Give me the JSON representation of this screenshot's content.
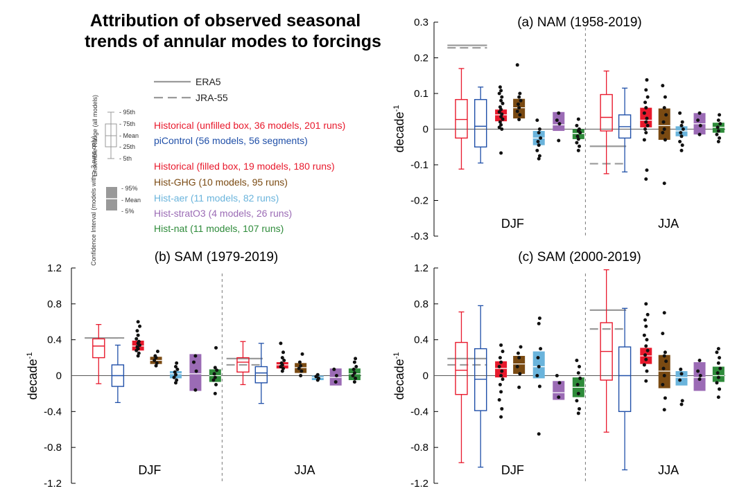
{
  "figure": {
    "title_line1": "Attribution of observed seasonal",
    "title_line2": "trends of annular modes to forcings"
  },
  "legend": {
    "obs": [
      {
        "name": "ERA5",
        "dash": false
      },
      {
        "name": "JRA-55",
        "dash": true
      }
    ],
    "ensemble_box_title": "Ensemble Range (all models)",
    "ensemble_box_labels": [
      "95th",
      "75th",
      "Mean",
      "25th",
      "5th"
    ],
    "ci_box_title": "Confidence Interval (models with ≥ 3 runs only)",
    "ci_box_labels": [
      "95%",
      "Mean",
      "5%"
    ],
    "entries": [
      {
        "text": "Historical (unfilled box, 36 models, 201 runs)",
        "color": "#e8192c"
      },
      {
        "text": "piControl (56 models, 56 segments)",
        "color": "#1f4fa8"
      },
      {
        "text": "Historical (filled box, 19 models, 180 runs)",
        "color": "#e8192c"
      },
      {
        "text": "Hist-GHG (10 models, 95 runs)",
        "color": "#7a4a12"
      },
      {
        "text": "Hist-aer (11 models, 82 runs)",
        "color": "#6ab4dc"
      },
      {
        "text": "Hist-stratO3 (4 models, 26 runs)",
        "color": "#9b6bb5"
      },
      {
        "text": "Hist-nat (11 models, 107 runs)",
        "color": "#2e8b3a"
      }
    ]
  },
  "chart_data": [
    {
      "id": "a",
      "type": "box",
      "title": "(a) NAM (1958-2019)",
      "ylabel": "decade-1",
      "ylim": [
        -0.3,
        0.3
      ],
      "yticks": [
        "0.3",
        "0.2",
        "0.1",
        "0",
        "-0.1",
        "-0.2",
        "-0.3"
      ],
      "ytick_values": [
        0.3,
        0.2,
        0.1,
        0,
        -0.1,
        -0.2,
        -0.3
      ],
      "seasons": [
        "DJF",
        "JJA"
      ],
      "obs": {
        "DJF": {
          "ERA5": 0.235,
          "JRA-55": 0.228
        },
        "JJA": {
          "ERA5": -0.048,
          "JRA-55": -0.097
        }
      },
      "groups": {
        "DJF": [
          {
            "exp": "Historical",
            "kind": "range",
            "p5": -0.112,
            "p25": -0.025,
            "mean": 0.027,
            "p75": 0.083,
            "p95": 0.17
          },
          {
            "exp": "piControl",
            "kind": "range",
            "p5": -0.095,
            "p25": -0.05,
            "mean": 0.008,
            "p75": 0.083,
            "p95": 0.118
          },
          {
            "exp": "Historical",
            "kind": "ci",
            "lo": 0.022,
            "mean": 0.04,
            "hi": 0.055,
            "dots": [
              -0.067,
              0.0,
              0.005,
              0.012,
              0.02,
              0.028,
              0.035,
              0.042,
              0.048,
              0.055,
              0.062,
              0.072,
              0.08,
              0.09,
              0.1,
              0.108,
              0.118
            ]
          },
          {
            "exp": "Hist-GHG",
            "kind": "ci",
            "lo": 0.03,
            "mean": 0.06,
            "hi": 0.085,
            "dots": [
              0.027,
              0.04,
              0.05,
              0.06,
              0.07,
              0.08,
              0.09,
              0.1,
              0.18
            ]
          },
          {
            "exp": "Hist-aer",
            "kind": "ci",
            "lo": -0.045,
            "mean": -0.025,
            "hi": -0.005,
            "dots": [
              -0.083,
              -0.075,
              -0.06,
              -0.045,
              -0.035,
              -0.025,
              -0.01,
              0.0,
              0.025
            ]
          },
          {
            "exp": "Hist-stratO3",
            "kind": "ci",
            "lo": -0.005,
            "mean": 0.012,
            "hi": 0.048,
            "dots": [
              -0.032,
              0.015,
              0.025,
              0.045
            ]
          },
          {
            "exp": "Hist-nat",
            "kind": "ci",
            "lo": -0.028,
            "mean": -0.012,
            "hi": 0.0,
            "dots": [
              -0.06,
              -0.048,
              -0.038,
              -0.028,
              -0.02,
              -0.01,
              -0.005,
              0.0,
              0.01,
              0.028
            ]
          }
        ],
        "JJA": [
          {
            "exp": "Historical",
            "kind": "range",
            "p5": -0.125,
            "p25": -0.005,
            "mean": 0.033,
            "p75": 0.097,
            "p95": 0.163
          },
          {
            "exp": "piControl",
            "kind": "range",
            "p5": -0.12,
            "p25": -0.025,
            "mean": 0.007,
            "p75": 0.04,
            "p95": 0.115
          },
          {
            "exp": "Historical",
            "kind": "ci",
            "lo": 0.005,
            "mean": 0.025,
            "hi": 0.06,
            "dots": [
              -0.14,
              -0.115,
              -0.03,
              -0.01,
              0.0,
              0.01,
              0.02,
              0.03,
              0.045,
              0.06,
              0.075,
              0.09,
              0.11,
              0.138
            ]
          },
          {
            "exp": "Hist-GHG",
            "kind": "ci",
            "lo": -0.03,
            "mean": 0.01,
            "hi": 0.058,
            "dots": [
              -0.152,
              -0.03,
              -0.01,
              0.0,
              0.02,
              0.04,
              0.06,
              0.09,
              0.122
            ]
          },
          {
            "exp": "Hist-aer",
            "kind": "ci",
            "lo": -0.02,
            "mean": -0.005,
            "hi": 0.008,
            "dots": [
              -0.06,
              -0.045,
              -0.035,
              -0.02,
              -0.01,
              0.0,
              0.01,
              0.02,
              0.045
            ]
          },
          {
            "exp": "Hist-stratO3",
            "kind": "ci",
            "lo": -0.015,
            "mean": 0.015,
            "hi": 0.045,
            "dots": [
              -0.015,
              0.01,
              0.025,
              0.045
            ]
          },
          {
            "exp": "Hist-nat",
            "kind": "ci",
            "lo": -0.01,
            "mean": 0.005,
            "hi": 0.018,
            "dots": [
              -0.035,
              -0.025,
              -0.015,
              -0.005,
              0.005,
              0.015,
              0.025,
              0.04
            ]
          }
        ]
      }
    },
    {
      "id": "b",
      "type": "box",
      "title": "(b) SAM (1979-2019)",
      "ylabel": "decade-1",
      "ylim": [
        -1.2,
        1.2
      ],
      "yticks": [
        "1.2",
        "0.8",
        "0.4",
        "0",
        "-0.4",
        "-0.8",
        "-1.2"
      ],
      "ytick_values": [
        1.2,
        0.8,
        0.4,
        0,
        -0.4,
        -0.8,
        -1.2
      ],
      "seasons": [
        "DJF",
        "JJA"
      ],
      "obs": {
        "DJF": {
          "ERA5": 0.42,
          "JRA-55": 0.42
        },
        "JJA": {
          "ERA5": 0.19,
          "JRA-55": 0.12
        }
      },
      "groups": {
        "DJF": [
          {
            "exp": "Historical",
            "kind": "range",
            "p5": -0.09,
            "p25": 0.2,
            "mean": 0.33,
            "p75": 0.41,
            "p95": 0.57
          },
          {
            "exp": "piControl",
            "kind": "range",
            "p5": -0.3,
            "p25": -0.12,
            "mean": 0.0,
            "p75": 0.12,
            "p95": 0.34
          },
          {
            "exp": "Historical",
            "kind": "ci",
            "lo": 0.28,
            "mean": 0.33,
            "hi": 0.39,
            "dots": [
              0.22,
              0.25,
              0.28,
              0.3,
              0.32,
              0.34,
              0.36,
              0.38,
              0.41,
              0.45,
              0.5,
              0.55,
              0.6
            ]
          },
          {
            "exp": "Hist-GHG",
            "kind": "ci",
            "lo": 0.13,
            "mean": 0.17,
            "hi": 0.21,
            "dots": [
              0.11,
              0.14,
              0.17,
              0.2,
              0.22,
              0.27
            ]
          },
          {
            "exp": "Hist-aer",
            "kind": "ci",
            "lo": -0.03,
            "mean": 0.02,
            "hi": 0.05,
            "dots": [
              -0.08,
              -0.05,
              -0.02,
              0.01,
              0.04,
              0.07,
              0.1,
              0.14
            ]
          },
          {
            "exp": "Hist-stratO3",
            "kind": "ci",
            "lo": -0.17,
            "mean": 0.02,
            "hi": 0.24,
            "dots": [
              -0.16,
              0.05,
              0.15,
              0.22
            ]
          },
          {
            "exp": "Hist-nat",
            "kind": "ci",
            "lo": -0.07,
            "mean": 0.0,
            "hi": 0.07,
            "dots": [
              -0.2,
              -0.1,
              -0.05,
              -0.02,
              0.02,
              0.06,
              0.09,
              0.31
            ]
          }
        ],
        "JJA": [
          {
            "exp": "Historical",
            "kind": "range",
            "p5": -0.1,
            "p25": 0.04,
            "mean": 0.15,
            "p75": 0.2,
            "p95": 0.38
          },
          {
            "exp": "piControl",
            "kind": "range",
            "p5": -0.31,
            "p25": -0.08,
            "mean": 0.03,
            "p75": 0.1,
            "p95": 0.36
          },
          {
            "exp": "Historical",
            "kind": "ci",
            "lo": 0.08,
            "mean": 0.12,
            "hi": 0.15,
            "dots": [
              0.05,
              0.08,
              0.1,
              0.12,
              0.14,
              0.17,
              0.2,
              0.26,
              0.36
            ]
          },
          {
            "exp": "Hist-GHG",
            "kind": "ci",
            "lo": 0.03,
            "mean": 0.09,
            "hi": 0.14,
            "dots": [
              0.0,
              0.05,
              0.08,
              0.11,
              0.15,
              0.24
            ]
          },
          {
            "exp": "Hist-aer",
            "kind": "ci",
            "lo": -0.05,
            "mean": -0.02,
            "hi": 0.0,
            "dots": [
              -0.05,
              -0.03,
              -0.01,
              0.01
            ]
          },
          {
            "exp": "Hist-stratO3",
            "kind": "ci",
            "lo": -0.11,
            "mean": -0.02,
            "hi": 0.08,
            "dots": [
              -0.07,
              0.0,
              0.07
            ]
          },
          {
            "exp": "Hist-nat",
            "kind": "ci",
            "lo": -0.05,
            "mean": 0.02,
            "hi": 0.08,
            "dots": [
              -0.07,
              -0.03,
              0.0,
              0.03,
              0.07,
              0.1,
              0.15,
              0.19
            ]
          }
        ]
      }
    },
    {
      "id": "c",
      "type": "box",
      "title": "(c) SAM (2000-2019)",
      "ylabel": "decade-1",
      "ylim": [
        -1.2,
        1.2
      ],
      "yticks": [
        "1.2",
        "0.8",
        "0.4",
        "0",
        "-0.4",
        "-0.8",
        "-1.2"
      ],
      "ytick_values": [
        1.2,
        0.8,
        0.4,
        0,
        -0.4,
        -0.8,
        -1.2
      ],
      "seasons": [
        "DJF",
        "JJA"
      ],
      "obs": {
        "DJF": {
          "ERA5": 0.19,
          "JRA-55": 0.12
        },
        "JJA": {
          "ERA5": 0.73,
          "JRA-55": 0.52
        }
      },
      "groups": {
        "DJF": [
          {
            "exp": "Historical",
            "kind": "range",
            "p5": -0.97,
            "p25": -0.21,
            "mean": 0.06,
            "p75": 0.37,
            "p95": 0.71
          },
          {
            "exp": "piControl",
            "kind": "range",
            "p5": -1.02,
            "p25": -0.39,
            "mean": -0.04,
            "p75": 0.3,
            "p95": 0.78
          },
          {
            "exp": "Historical",
            "kind": "ci",
            "lo": -0.02,
            "mean": 0.08,
            "hi": 0.16,
            "dots": [
              -0.46,
              -0.37,
              -0.27,
              -0.18,
              -0.1,
              -0.04,
              0.0,
              0.05,
              0.1,
              0.15,
              0.2,
              0.27,
              0.34
            ]
          },
          {
            "exp": "Hist-GHG",
            "kind": "ci",
            "lo": 0.02,
            "mean": 0.13,
            "hi": 0.22,
            "dots": [
              -0.13,
              0.02,
              0.1,
              0.2,
              0.25,
              0.32
            ]
          },
          {
            "exp": "Hist-aer",
            "kind": "ci",
            "lo": -0.03,
            "mean": 0.1,
            "hi": 0.27,
            "dots": [
              -0.65,
              -0.12,
              0.0,
              0.1,
              0.2,
              0.3,
              0.58,
              0.64
            ]
          },
          {
            "exp": "Hist-stratO3",
            "kind": "ci",
            "lo": -0.27,
            "mean": -0.19,
            "hi": -0.06,
            "dots": [
              -0.24,
              -0.08,
              0.0
            ]
          },
          {
            "exp": "Hist-nat",
            "kind": "ci",
            "lo": -0.24,
            "mean": -0.13,
            "hi": -0.02,
            "dots": [
              -0.42,
              -0.37,
              -0.28,
              -0.2,
              -0.1,
              -0.03,
              0.03,
              0.1,
              0.17
            ]
          }
        ],
        "JJA": [
          {
            "exp": "Historical",
            "kind": "range",
            "p5": -0.63,
            "p25": -0.05,
            "mean": 0.27,
            "p75": 0.59,
            "p95": 1.18
          },
          {
            "exp": "piControl",
            "kind": "range",
            "p5": -1.05,
            "p25": -0.4,
            "mean": 0.0,
            "p75": 0.32,
            "p95": 0.75
          },
          {
            "exp": "Historical",
            "kind": "ci",
            "lo": 0.13,
            "mean": 0.22,
            "hi": 0.31,
            "dots": [
              -0.06,
              0.05,
              0.12,
              0.18,
              0.23,
              0.28,
              0.33,
              0.4,
              0.45,
              0.55,
              0.62,
              0.68,
              0.8
            ]
          },
          {
            "exp": "Hist-GHG",
            "kind": "ci",
            "lo": -0.14,
            "mean": 0.05,
            "hi": 0.23,
            "dots": [
              -0.38,
              -0.25,
              -0.1,
              0.0,
              0.08,
              0.16,
              0.22,
              0.26,
              0.47,
              0.7
            ]
          },
          {
            "exp": "Hist-aer",
            "kind": "ci",
            "lo": -0.11,
            "mean": -0.02,
            "hi": 0.05,
            "dots": [
              -0.32,
              -0.28,
              -0.05,
              0.02,
              0.07
            ]
          },
          {
            "exp": "Hist-stratO3",
            "kind": "ci",
            "lo": -0.17,
            "mean": -0.02,
            "hi": 0.15,
            "dots": [
              -0.04,
              0.0,
              0.05,
              0.17
            ]
          },
          {
            "exp": "Hist-nat",
            "kind": "ci",
            "lo": -0.07,
            "mean": 0.0,
            "hi": 0.1,
            "dots": [
              -0.24,
              -0.15,
              -0.08,
              -0.02,
              0.03,
              0.08,
              0.14,
              0.2,
              0.26,
              0.3
            ]
          }
        ]
      }
    }
  ],
  "colors": {
    "Historical": "#e8192c",
    "piControl": "#1f4fa8",
    "Hist-GHG": "#7a4a12",
    "Hist-aer": "#6ab4dc",
    "Hist-stratO3": "#9b6bb5",
    "Hist-nat": "#2e8b3a",
    "obs": "#9a9a9a"
  }
}
